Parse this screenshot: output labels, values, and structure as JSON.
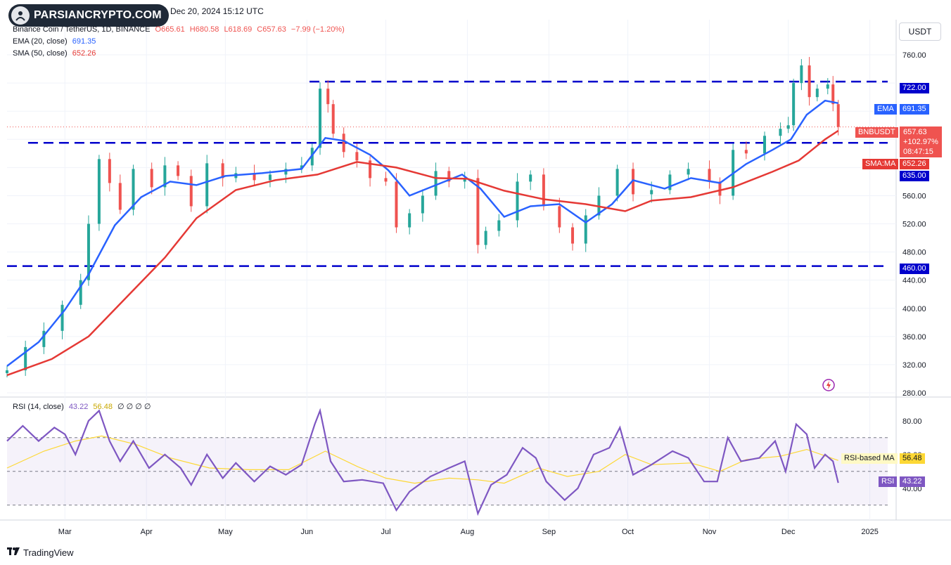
{
  "brand": {
    "logo_text": "PARSIANCRYPTO.COM"
  },
  "header": {
    "date": "Dec 20, 2024 15:12 UTC"
  },
  "ohlc": {
    "symbol": "Binance Coin / TetherUS, 1D, BINANCE",
    "open": "O665.61",
    "high": "H680.58",
    "low": "L618.69",
    "close": "C657.63",
    "change": "−7.99 (−1.20%)"
  },
  "indicators": {
    "ema": {
      "label": "EMA (20, close)",
      "value": "691.35"
    },
    "sma": {
      "label": "SMA (50, close)",
      "value": "652.26"
    },
    "rsi": {
      "label": "RSI (14, close)",
      "value": "43.22",
      "ma_value": "56.48",
      "extras": "∅ ∅ ∅ ∅"
    }
  },
  "currency_button": "USDT",
  "tags": {
    "level_722": "722.00",
    "ema_tag": "EMA",
    "ema_val": "691.35",
    "pair_tag": "BNBUSDT",
    "pair_price": "657.63",
    "pair_change": "+102.97%",
    "pair_timer": "08:47:15",
    "sma_tag": "SMA:MA",
    "sma_val": "652.26",
    "level_635": "635.00",
    "level_460": "460.00",
    "rsi_ma_tag": "RSI-based MA",
    "rsi_ma_val": "56.48",
    "rsi_tag": "RSI",
    "rsi_val": "43.22"
  },
  "footer": {
    "brand": "TradingView"
  },
  "colors": {
    "up": "#26a69a",
    "down": "#ef5350",
    "ema": "#2962ff",
    "sma": "#e53935",
    "level": "#0000cc",
    "rsi": "#7e57c2",
    "rsi_ma": "#fdd835"
  },
  "chart_data": [
    {
      "type": "line",
      "title": "Binance Coin / TetherUS, 1D, BINANCE",
      "ylabel": "USDT",
      "price_axis": {
        "ticks": [
          280,
          320,
          360,
          400,
          440,
          480,
          520,
          560,
          600,
          640,
          680,
          720,
          760
        ]
      },
      "price_tick_labels": [
        "280.00",
        "320.00",
        "360.00",
        "400.00",
        "440.00",
        "480.00",
        "520.00",
        "560.00",
        "",
        "",
        "",
        "",
        "760.00"
      ],
      "ylim": [
        277,
        790
      ],
      "time_axis": {
        "labels": [
          "Mar",
          "Apr",
          "May",
          "Jun",
          "Jul",
          "Aug",
          "Sep",
          "Oct",
          "Nov",
          "Dec",
          "2025"
        ],
        "dates": [
          "2024-03-01",
          "2024-04-01",
          "2024-05-01",
          "2024-06-01",
          "2024-07-01",
          "2024-08-01",
          "2024-09-01",
          "2024-10-01",
          "2024-11-01",
          "2024-12-01",
          "2025-01-01"
        ]
      },
      "xlim": [
        "2024-02-08",
        "2025-01-11"
      ],
      "horizontal_levels": [
        722,
        635,
        460
      ],
      "series": [
        {
          "name": "BNBUSDT",
          "kind": "candles",
          "points": [
            [
              "2024-02-08",
              312
            ],
            [
              "2024-02-15",
              345
            ],
            [
              "2024-02-22",
              368
            ],
            [
              "2024-02-29",
              405
            ],
            [
              "2024-03-07",
              440
            ],
            [
              "2024-03-10",
              520
            ],
            [
              "2024-03-14",
              612
            ],
            [
              "2024-03-18",
              578
            ],
            [
              "2024-03-22",
              540
            ],
            [
              "2024-03-27",
              598
            ],
            [
              "2024-04-03",
              572
            ],
            [
              "2024-04-08",
              603
            ],
            [
              "2024-04-13",
              588
            ],
            [
              "2024-04-18",
              545
            ],
            [
              "2024-04-24",
              606
            ],
            [
              "2024-04-30",
              585
            ],
            [
              "2024-05-05",
              592
            ],
            [
              "2024-05-12",
              582
            ],
            [
              "2024-05-18",
              590
            ],
            [
              "2024-05-24",
              598
            ],
            [
              "2024-05-30",
              603
            ],
            [
              "2024-06-03",
              628
            ],
            [
              "2024-06-06",
              712
            ],
            [
              "2024-06-09",
              690
            ],
            [
              "2024-06-11",
              648
            ],
            [
              "2024-06-15",
              622
            ],
            [
              "2024-06-20",
              610
            ],
            [
              "2024-06-25",
              585
            ],
            [
              "2024-07-01",
              580
            ],
            [
              "2024-07-05",
              515
            ],
            [
              "2024-07-10",
              535
            ],
            [
              "2024-07-15",
              560
            ],
            [
              "2024-07-20",
              595
            ],
            [
              "2024-07-25",
              580
            ],
            [
              "2024-07-31",
              585
            ],
            [
              "2024-08-05",
              490
            ],
            [
              "2024-08-08",
              510
            ],
            [
              "2024-08-13",
              525
            ],
            [
              "2024-08-20",
              580
            ],
            [
              "2024-08-25",
              590
            ],
            [
              "2024-08-30",
              545
            ],
            [
              "2024-09-05",
              515
            ],
            [
              "2024-09-10",
              492
            ],
            [
              "2024-09-15",
              532
            ],
            [
              "2024-09-20",
              560
            ],
            [
              "2024-09-27",
              598
            ],
            [
              "2024-10-03",
              562
            ],
            [
              "2024-10-10",
              568
            ],
            [
              "2024-10-17",
              590
            ],
            [
              "2024-10-24",
              598
            ],
            [
              "2024-11-01",
              580
            ],
            [
              "2024-11-05",
              560
            ],
            [
              "2024-11-10",
              625
            ],
            [
              "2024-11-15",
              620
            ],
            [
              "2024-11-22",
              645
            ],
            [
              "2024-11-28",
              655
            ],
            [
              "2024-12-01",
              660
            ],
            [
              "2024-12-03",
              720
            ],
            [
              "2024-12-06",
              745
            ],
            [
              "2024-12-09",
              700
            ],
            [
              "2024-12-12",
              712
            ],
            [
              "2024-12-16",
              718
            ],
            [
              "2024-12-18",
              690
            ],
            [
              "2024-12-20",
              657.63
            ]
          ]
        },
        {
          "name": "EMA (20, close)",
          "kind": "line",
          "points": [
            [
              "2024-02-08",
              318
            ],
            [
              "2024-02-20",
              352
            ],
            [
              "2024-03-01",
              398
            ],
            [
              "2024-03-10",
              448
            ],
            [
              "2024-03-20",
              518
            ],
            [
              "2024-03-30",
              558
            ],
            [
              "2024-04-10",
              580
            ],
            [
              "2024-04-20",
              575
            ],
            [
              "2024-05-01",
              588
            ],
            [
              "2024-05-15",
              592
            ],
            [
              "2024-05-30",
              598
            ],
            [
              "2024-06-08",
              642
            ],
            [
              "2024-06-15",
              638
            ],
            [
              "2024-06-25",
              618
            ],
            [
              "2024-07-02",
              596
            ],
            [
              "2024-07-10",
              560
            ],
            [
              "2024-07-20",
              575
            ],
            [
              "2024-07-30",
              590
            ],
            [
              "2024-08-06",
              570
            ],
            [
              "2024-08-15",
              530
            ],
            [
              "2024-08-25",
              545
            ],
            [
              "2024-09-05",
              548
            ],
            [
              "2024-09-15",
              522
            ],
            [
              "2024-09-25",
              548
            ],
            [
              "2024-10-03",
              582
            ],
            [
              "2024-10-15",
              570
            ],
            [
              "2024-10-25",
              585
            ],
            [
              "2024-11-05",
              578
            ],
            [
              "2024-11-15",
              605
            ],
            [
              "2024-11-25",
              625
            ],
            [
              "2024-12-02",
              640
            ],
            [
              "2024-12-08",
              675
            ],
            [
              "2024-12-15",
              695
            ],
            [
              "2024-12-20",
              691.35
            ]
          ]
        },
        {
          "name": "SMA (50, close)",
          "kind": "line",
          "points": [
            [
              "2024-02-08",
              305
            ],
            [
              "2024-02-25",
              328
            ],
            [
              "2024-03-10",
              360
            ],
            [
              "2024-03-25",
              418
            ],
            [
              "2024-04-08",
              472
            ],
            [
              "2024-04-20",
              528
            ],
            [
              "2024-05-05",
              568
            ],
            [
              "2024-05-20",
              582
            ],
            [
              "2024-06-05",
              590
            ],
            [
              "2024-06-20",
              608
            ],
            [
              "2024-07-05",
              600
            ],
            [
              "2024-07-20",
              585
            ],
            [
              "2024-08-01",
              584
            ],
            [
              "2024-08-15",
              567
            ],
            [
              "2024-08-30",
              555
            ],
            [
              "2024-09-15",
              548
            ],
            [
              "2024-09-30",
              538
            ],
            [
              "2024-10-10",
              553
            ],
            [
              "2024-10-25",
              558
            ],
            [
              "2024-11-10",
              572
            ],
            [
              "2024-11-25",
              594
            ],
            [
              "2024-12-05",
              610
            ],
            [
              "2024-12-15",
              640
            ],
            [
              "2024-12-20",
              652.26
            ]
          ]
        }
      ]
    },
    {
      "type": "line",
      "title": "RSI (14, close)",
      "ylim": [
        22,
        92
      ],
      "axis_ticks": [
        40,
        60,
        80
      ],
      "bands": [
        70,
        50,
        30
      ],
      "series": [
        {
          "name": "RSI",
          "points": [
            [
              "2024-02-08",
              68
            ],
            [
              "2024-02-14",
              77
            ],
            [
              "2024-02-20",
              68
            ],
            [
              "2024-02-26",
              76
            ],
            [
              "2024-03-01",
              72
            ],
            [
              "2024-03-05",
              60
            ],
            [
              "2024-03-10",
              80
            ],
            [
              "2024-03-14",
              86
            ],
            [
              "2024-03-18",
              68
            ],
            [
              "2024-03-22",
              56
            ],
            [
              "2024-03-27",
              68
            ],
            [
              "2024-04-02",
              52
            ],
            [
              "2024-04-08",
              60
            ],
            [
              "2024-04-14",
              52
            ],
            [
              "2024-04-18",
              42
            ],
            [
              "2024-04-24",
              60
            ],
            [
              "2024-04-30",
              46
            ],
            [
              "2024-05-05",
              55
            ],
            [
              "2024-05-12",
              44
            ],
            [
              "2024-05-18",
              53
            ],
            [
              "2024-05-24",
              48
            ],
            [
              "2024-05-30",
              54
            ],
            [
              "2024-06-04",
              78
            ],
            [
              "2024-06-06",
              86
            ],
            [
              "2024-06-10",
              56
            ],
            [
              "2024-06-15",
              44
            ],
            [
              "2024-06-22",
              45
            ],
            [
              "2024-06-30",
              43
            ],
            [
              "2024-07-05",
              27
            ],
            [
              "2024-07-10",
              38
            ],
            [
              "2024-07-18",
              47
            ],
            [
              "2024-07-25",
              52
            ],
            [
              "2024-07-31",
              56
            ],
            [
              "2024-08-05",
              25
            ],
            [
              "2024-08-10",
              42
            ],
            [
              "2024-08-16",
              48
            ],
            [
              "2024-08-22",
              64
            ],
            [
              "2024-08-27",
              58
            ],
            [
              "2024-08-31",
              44
            ],
            [
              "2024-09-07",
              33
            ],
            [
              "2024-09-12",
              40
            ],
            [
              "2024-09-18",
              60
            ],
            [
              "2024-09-24",
              64
            ],
            [
              "2024-09-28",
              76
            ],
            [
              "2024-10-03",
              48
            ],
            [
              "2024-10-10",
              54
            ],
            [
              "2024-10-18",
              62
            ],
            [
              "2024-10-24",
              58
            ],
            [
              "2024-10-30",
              44
            ],
            [
              "2024-11-04",
              44
            ],
            [
              "2024-11-08",
              70
            ],
            [
              "2024-11-13",
              56
            ],
            [
              "2024-11-20",
              58
            ],
            [
              "2024-11-26",
              68
            ],
            [
              "2024-11-30",
              50
            ],
            [
              "2024-12-04",
              78
            ],
            [
              "2024-12-08",
              72
            ],
            [
              "2024-12-11",
              52
            ],
            [
              "2024-12-15",
              60
            ],
            [
              "2024-12-18",
              56
            ],
            [
              "2024-12-20",
              43.22
            ]
          ]
        },
        {
          "name": "RSI-based MA",
          "points": [
            [
              "2024-02-08",
              52
            ],
            [
              "2024-02-22",
              62
            ],
            [
              "2024-03-05",
              68
            ],
            [
              "2024-03-15",
              71
            ],
            [
              "2024-03-28",
              66
            ],
            [
              "2024-04-10",
              58
            ],
            [
              "2024-04-25",
              52
            ],
            [
              "2024-05-10",
              51
            ],
            [
              "2024-05-25",
              51
            ],
            [
              "2024-06-08",
              62
            ],
            [
              "2024-06-20",
              53
            ],
            [
              "2024-07-01",
              46
            ],
            [
              "2024-07-12",
              43
            ],
            [
              "2024-07-25",
              46
            ],
            [
              "2024-08-05",
              45
            ],
            [
              "2024-08-15",
              43
            ],
            [
              "2024-08-28",
              52
            ],
            [
              "2024-09-08",
              47
            ],
            [
              "2024-09-20",
              50
            ],
            [
              "2024-09-30",
              60
            ],
            [
              "2024-10-10",
              54
            ],
            [
              "2024-10-25",
              55
            ],
            [
              "2024-11-05",
              50
            ],
            [
              "2024-11-15",
              57
            ],
            [
              "2024-11-28",
              59
            ],
            [
              "2024-12-08",
              63
            ],
            [
              "2024-12-20",
              56.48
            ]
          ]
        }
      ]
    }
  ]
}
